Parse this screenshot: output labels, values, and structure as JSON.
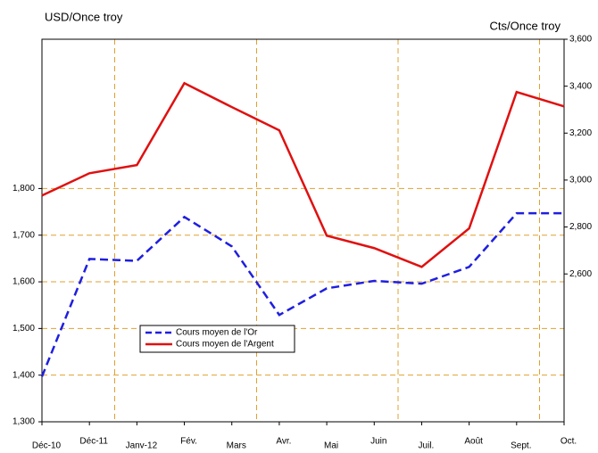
{
  "chart_data": {
    "type": "line",
    "y_label": "USD/Once troy",
    "y2_label": "Cts/Once troy",
    "categories": [
      "Déc-10",
      "Déc-11",
      "Janv-12",
      "Fév.",
      "Mars",
      "Avr.",
      "Mai",
      "Juin",
      "Juil.",
      "Août",
      "Sept.",
      "Oct."
    ],
    "series": [
      {
        "name": "Cours moyen de l'Or",
        "color": "#1f1fe0",
        "dash": true,
        "values": [
          1397,
          1649,
          1645,
          1739,
          1676,
          1529,
          1586,
          1602,
          1596,
          1632,
          1747,
          1747
        ]
      },
      {
        "name": "Cours moyen de l'Argent",
        "color": "#e01010",
        "axis": "y2",
        "values": [
          2934,
          3029,
          3064,
          3413,
          3311,
          3212,
          2763,
          2710,
          2630,
          2794,
          3375,
          3314
        ]
      }
    ],
    "ylim": [
      1300,
      2120
    ],
    "yticks": [
      {
        "value": 1300,
        "label": "1,300"
      },
      {
        "value": 1400,
        "label": "1,400"
      },
      {
        "value": 1500,
        "label": "1,500"
      },
      {
        "value": 1600,
        "label": "1,600"
      },
      {
        "value": 1700,
        "label": "1,700"
      },
      {
        "value": 1800,
        "label": "1,800"
      }
    ],
    "y2lim": [
      1970,
      3600
    ],
    "y2ticks": [
      {
        "value": 2600,
        "label": "2,600"
      },
      {
        "value": 2800,
        "label": "2,800"
      },
      {
        "value": 3000,
        "label": "3,000"
      },
      {
        "value": 3200,
        "label": "3,200"
      },
      {
        "value": 3400,
        "label": "3,400"
      },
      {
        "value": 3600,
        "label": "3,600"
      }
    ],
    "grid": true
  }
}
